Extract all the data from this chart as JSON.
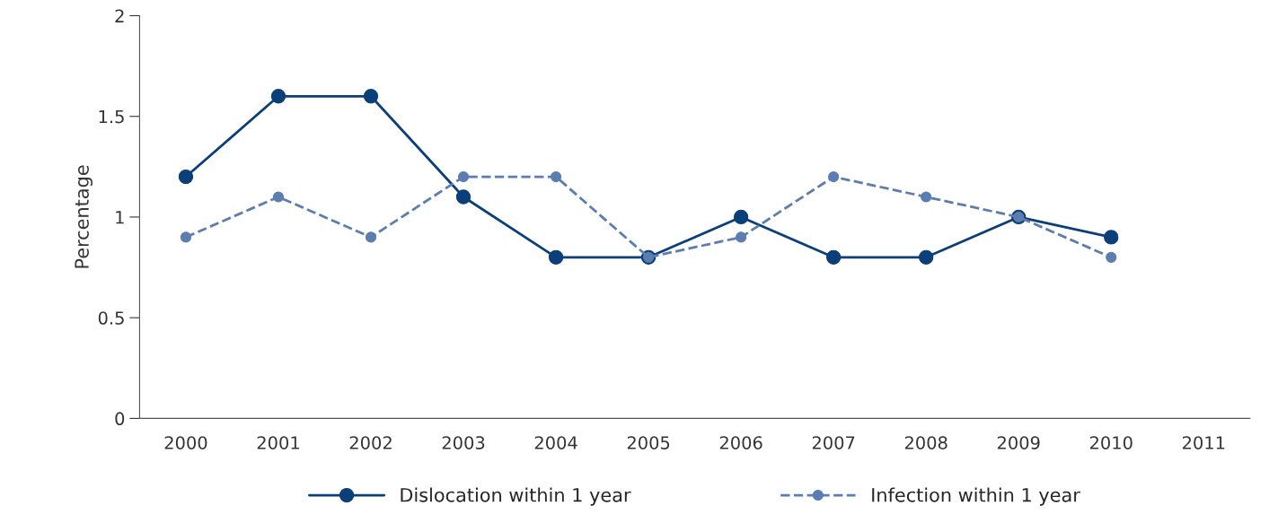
{
  "chart_data": {
    "type": "line",
    "ylabel": "Percentage",
    "categories": [
      "2000",
      "2001",
      "2002",
      "2003",
      "2004",
      "2005",
      "2006",
      "2007",
      "2008",
      "2009",
      "2010",
      "2011"
    ],
    "series": [
      {
        "name": "Dislocation within 1 year",
        "color": "#0b3f7a",
        "line_style": "solid",
        "values": [
          1.2,
          1.6,
          1.6,
          1.1,
          0.8,
          0.8,
          1.0,
          0.8,
          0.8,
          1.0,
          0.9,
          null
        ]
      },
      {
        "name": "Infection within 1 year",
        "color": "#5b7db0",
        "line_style": "dashed",
        "values": [
          0.9,
          1.1,
          0.9,
          1.2,
          1.2,
          0.8,
          0.9,
          1.2,
          1.1,
          1.0,
          0.8,
          null
        ]
      }
    ],
    "ylim": [
      0,
      2
    ],
    "yticks": [
      0,
      0.5,
      1,
      1.5,
      2
    ],
    "marker": "circle",
    "grid": false,
    "legend": "bottom"
  }
}
